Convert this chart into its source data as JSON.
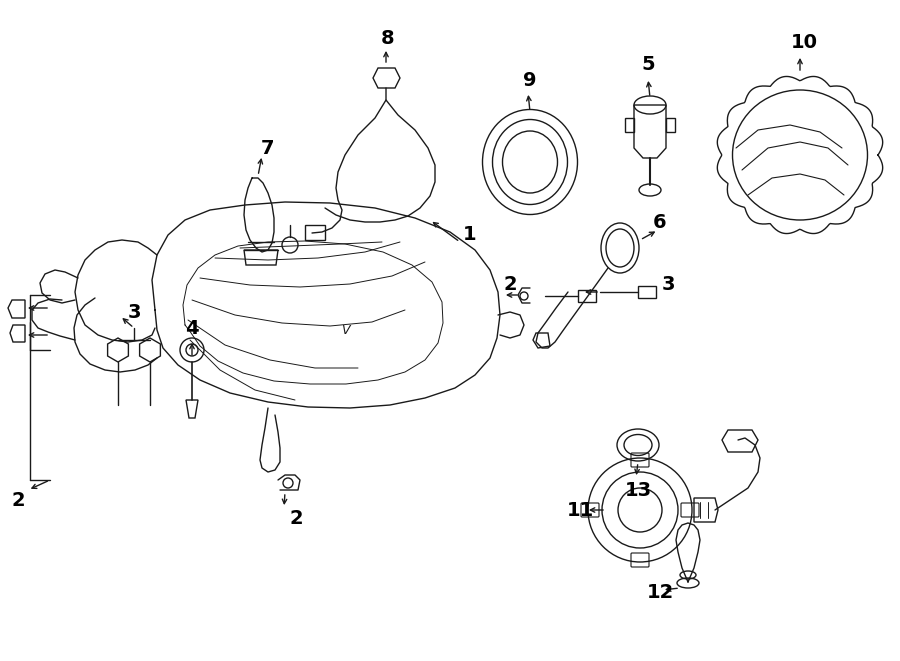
{
  "background_color": "#ffffff",
  "line_color": "#1a1a1a",
  "lw": 1.0,
  "figw": 9.0,
  "figh": 6.61
}
